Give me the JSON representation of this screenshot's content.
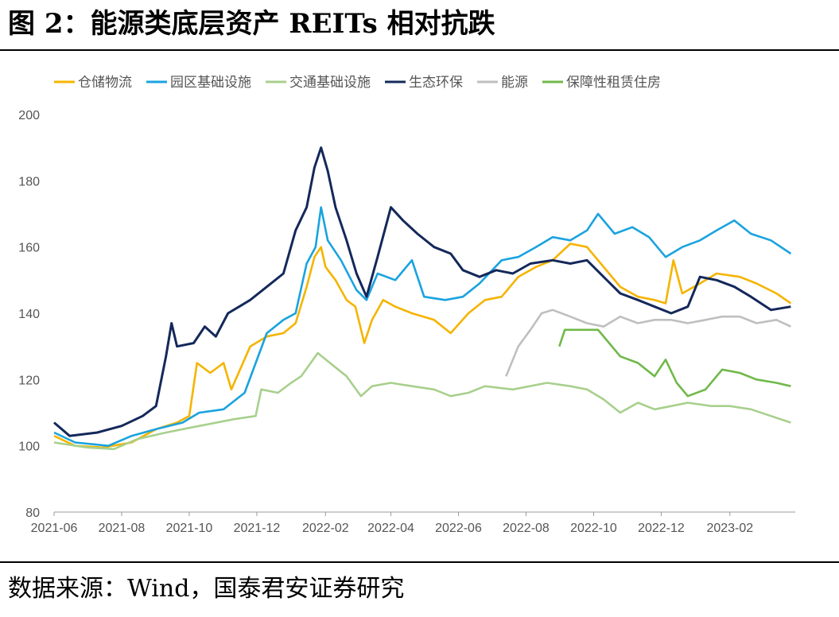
{
  "title": "图 2：能源类底层资产 REITs 相对抗跌",
  "source": "数据来源：Wind，国泰君安证券研究",
  "chart_data": {
    "type": "line",
    "legend_position": "top",
    "grid": false,
    "ylim": [
      80,
      200
    ],
    "yticks": [
      80,
      100,
      120,
      140,
      160,
      180,
      200
    ],
    "xlim": [
      "2021-06",
      "2023-04"
    ],
    "xticks": [
      "2021-06",
      "2021-08",
      "2021-10",
      "2021-12",
      "2022-02",
      "2022-04",
      "2022-06",
      "2022-08",
      "2022-10",
      "2022-12",
      "2023-02"
    ],
    "series": [
      {
        "name": "仓储物流",
        "color": "#f5b400",
        "points": [
          [
            "2021-06-01",
            103
          ],
          [
            "2021-06-20",
            100
          ],
          [
            "2021-07-15",
            99.5
          ],
          [
            "2021-08-10",
            101
          ],
          [
            "2021-09-01",
            105
          ],
          [
            "2021-09-20",
            107
          ],
          [
            "2021-10-01",
            109
          ],
          [
            "2021-10-08",
            125
          ],
          [
            "2021-10-20",
            122
          ],
          [
            "2021-11-01",
            125
          ],
          [
            "2021-11-08",
            117
          ],
          [
            "2021-11-25",
            130
          ],
          [
            "2021-12-10",
            133
          ],
          [
            "2021-12-25",
            134
          ],
          [
            "2022-01-05",
            137
          ],
          [
            "2022-01-15",
            148
          ],
          [
            "2022-01-22",
            157
          ],
          [
            "2022-01-28",
            160
          ],
          [
            "2022-02-01",
            154
          ],
          [
            "2022-02-10",
            150
          ],
          [
            "2022-02-20",
            144
          ],
          [
            "2022-02-28",
            142
          ],
          [
            "2022-03-08",
            131
          ],
          [
            "2022-03-15",
            138
          ],
          [
            "2022-03-25",
            144
          ],
          [
            "2022-04-05",
            142
          ],
          [
            "2022-04-20",
            140
          ],
          [
            "2022-05-10",
            138
          ],
          [
            "2022-05-25",
            134
          ],
          [
            "2022-06-10",
            140
          ],
          [
            "2022-06-25",
            144
          ],
          [
            "2022-07-10",
            145
          ],
          [
            "2022-07-25",
            151
          ],
          [
            "2022-08-10",
            154
          ],
          [
            "2022-08-25",
            156
          ],
          [
            "2022-09-10",
            161
          ],
          [
            "2022-09-25",
            160
          ],
          [
            "2022-10-10",
            154
          ],
          [
            "2022-10-25",
            148
          ],
          [
            "2022-11-10",
            145
          ],
          [
            "2022-11-25",
            144
          ],
          [
            "2022-12-05",
            143
          ],
          [
            "2022-12-12",
            156
          ],
          [
            "2022-12-20",
            146
          ],
          [
            "2023-01-05",
            149
          ],
          [
            "2023-01-20",
            152
          ],
          [
            "2023-02-10",
            151
          ],
          [
            "2023-02-25",
            149
          ],
          [
            "2023-03-15",
            146
          ],
          [
            "2023-03-28",
            143
          ]
        ]
      },
      {
        "name": "园区基础设施",
        "color": "#1aa3df",
        "points": [
          [
            "2021-06-01",
            104
          ],
          [
            "2021-06-20",
            101
          ],
          [
            "2021-07-20",
            100
          ],
          [
            "2021-08-10",
            103
          ],
          [
            "2021-09-01",
            105
          ],
          [
            "2021-09-25",
            107
          ],
          [
            "2021-10-10",
            110
          ],
          [
            "2021-11-01",
            111
          ],
          [
            "2021-11-20",
            116
          ],
          [
            "2021-12-10",
            134
          ],
          [
            "2021-12-25",
            138
          ],
          [
            "2022-01-05",
            140
          ],
          [
            "2022-01-15",
            155
          ],
          [
            "2022-01-23",
            160
          ],
          [
            "2022-01-28",
            172
          ],
          [
            "2022-02-03",
            162
          ],
          [
            "2022-02-15",
            156
          ],
          [
            "2022-03-01",
            147
          ],
          [
            "2022-03-10",
            144
          ],
          [
            "2022-03-20",
            152
          ],
          [
            "2022-04-05",
            150
          ],
          [
            "2022-04-20",
            156
          ],
          [
            "2022-05-01",
            145
          ],
          [
            "2022-05-20",
            144
          ],
          [
            "2022-06-05",
            145
          ],
          [
            "2022-06-20",
            149
          ],
          [
            "2022-07-10",
            156
          ],
          [
            "2022-07-25",
            157
          ],
          [
            "2022-08-10",
            160
          ],
          [
            "2022-08-25",
            163
          ],
          [
            "2022-09-10",
            162
          ],
          [
            "2022-09-25",
            165
          ],
          [
            "2022-10-05",
            170
          ],
          [
            "2022-10-20",
            164
          ],
          [
            "2022-11-05",
            166
          ],
          [
            "2022-11-20",
            163
          ],
          [
            "2022-12-05",
            157
          ],
          [
            "2022-12-20",
            160
          ],
          [
            "2023-01-05",
            162
          ],
          [
            "2023-01-20",
            165
          ],
          [
            "2023-02-05",
            168
          ],
          [
            "2023-02-20",
            164
          ],
          [
            "2023-03-10",
            162
          ],
          [
            "2023-03-28",
            158
          ]
        ]
      },
      {
        "name": "交通基础设施",
        "color": "#a8d08d",
        "points": [
          [
            "2021-06-01",
            101
          ],
          [
            "2021-07-01",
            99.5
          ],
          [
            "2021-07-25",
            99
          ],
          [
            "2021-08-15",
            102
          ],
          [
            "2021-09-10",
            104
          ],
          [
            "2021-10-10",
            106
          ],
          [
            "2021-11-10",
            108
          ],
          [
            "2021-11-30",
            109
          ],
          [
            "2021-12-05",
            117
          ],
          [
            "2021-12-20",
            116
          ],
          [
            "2022-01-01",
            119
          ],
          [
            "2022-01-10",
            121
          ],
          [
            "2022-01-25",
            128
          ],
          [
            "2022-02-05",
            125
          ],
          [
            "2022-02-20",
            121
          ],
          [
            "2022-03-05",
            115
          ],
          [
            "2022-03-15",
            118
          ],
          [
            "2022-04-01",
            119
          ],
          [
            "2022-04-20",
            118
          ],
          [
            "2022-05-10",
            117
          ],
          [
            "2022-05-25",
            115
          ],
          [
            "2022-06-10",
            116
          ],
          [
            "2022-06-25",
            118
          ],
          [
            "2022-07-20",
            117
          ],
          [
            "2022-08-20",
            119
          ],
          [
            "2022-09-10",
            118
          ],
          [
            "2022-09-25",
            117
          ],
          [
            "2022-10-10",
            114
          ],
          [
            "2022-10-25",
            110
          ],
          [
            "2022-11-10",
            113
          ],
          [
            "2022-11-25",
            111
          ],
          [
            "2022-12-10",
            112
          ],
          [
            "2022-12-25",
            113
          ],
          [
            "2023-01-15",
            112
          ],
          [
            "2023-02-01",
            112
          ],
          [
            "2023-02-20",
            111
          ],
          [
            "2023-03-10",
            109
          ],
          [
            "2023-03-28",
            107
          ]
        ]
      },
      {
        "name": "生态环保",
        "color": "#14285a",
        "points": [
          [
            "2021-06-01",
            107
          ],
          [
            "2021-06-15",
            103
          ],
          [
            "2021-07-10",
            104
          ],
          [
            "2021-08-01",
            106
          ],
          [
            "2021-08-20",
            109
          ],
          [
            "2021-09-01",
            112
          ],
          [
            "2021-09-10",
            127
          ],
          [
            "2021-09-15",
            137
          ],
          [
            "2021-09-20",
            130
          ],
          [
            "2021-10-05",
            131
          ],
          [
            "2021-10-15",
            136
          ],
          [
            "2021-10-25",
            133
          ],
          [
            "2021-11-05",
            140
          ],
          [
            "2021-11-15",
            142
          ],
          [
            "2021-11-25",
            144
          ],
          [
            "2021-12-10",
            148
          ],
          [
            "2021-12-25",
            152
          ],
          [
            "2022-01-05",
            165
          ],
          [
            "2022-01-15",
            172
          ],
          [
            "2022-01-22",
            184
          ],
          [
            "2022-01-28",
            190
          ],
          [
            "2022-02-03",
            183
          ],
          [
            "2022-02-10",
            172
          ],
          [
            "2022-02-20",
            162
          ],
          [
            "2022-03-01",
            152
          ],
          [
            "2022-03-10",
            145
          ],
          [
            "2022-03-20",
            157
          ],
          [
            "2022-04-01",
            172
          ],
          [
            "2022-04-12",
            168
          ],
          [
            "2022-04-25",
            164
          ],
          [
            "2022-05-10",
            160
          ],
          [
            "2022-05-25",
            158
          ],
          [
            "2022-06-05",
            153
          ],
          [
            "2022-06-20",
            151
          ],
          [
            "2022-07-05",
            153
          ],
          [
            "2022-07-20",
            152
          ],
          [
            "2022-08-05",
            155
          ],
          [
            "2022-08-25",
            156
          ],
          [
            "2022-09-10",
            155
          ],
          [
            "2022-09-25",
            156
          ],
          [
            "2022-10-10",
            151
          ],
          [
            "2022-10-25",
            146
          ],
          [
            "2022-11-10",
            144
          ],
          [
            "2022-11-25",
            142
          ],
          [
            "2022-12-10",
            140
          ],
          [
            "2022-12-25",
            142
          ],
          [
            "2023-01-05",
            151
          ],
          [
            "2023-01-20",
            150
          ],
          [
            "2023-02-05",
            148
          ],
          [
            "2023-02-20",
            145
          ],
          [
            "2023-03-10",
            141
          ],
          [
            "2023-03-28",
            142
          ]
        ]
      },
      {
        "name": "能源",
        "color": "#bfbfbf",
        "points": [
          [
            "2022-07-14",
            121
          ],
          [
            "2022-07-25",
            130
          ],
          [
            "2022-08-05",
            135
          ],
          [
            "2022-08-15",
            140
          ],
          [
            "2022-08-25",
            141
          ],
          [
            "2022-09-10",
            139
          ],
          [
            "2022-09-25",
            137
          ],
          [
            "2022-10-10",
            136
          ],
          [
            "2022-10-25",
            139
          ],
          [
            "2022-11-10",
            137
          ],
          [
            "2022-11-25",
            138
          ],
          [
            "2022-12-10",
            138
          ],
          [
            "2022-12-25",
            137
          ],
          [
            "2023-01-10",
            138
          ],
          [
            "2023-01-25",
            139
          ],
          [
            "2023-02-10",
            139
          ],
          [
            "2023-02-25",
            137
          ],
          [
            "2023-03-15",
            138
          ],
          [
            "2023-03-28",
            136
          ]
        ]
      },
      {
        "name": "保障性租赁住房",
        "color": "#70b84a",
        "points": [
          [
            "2022-08-31",
            130
          ],
          [
            "2022-09-05",
            135
          ],
          [
            "2022-09-20",
            135
          ],
          [
            "2022-10-05",
            135
          ],
          [
            "2022-10-15",
            131
          ],
          [
            "2022-10-25",
            127
          ],
          [
            "2022-11-10",
            125
          ],
          [
            "2022-11-25",
            121
          ],
          [
            "2022-12-05",
            126
          ],
          [
            "2022-12-15",
            119
          ],
          [
            "2022-12-25",
            115
          ],
          [
            "2023-01-10",
            117
          ],
          [
            "2023-01-25",
            123
          ],
          [
            "2023-02-10",
            122
          ],
          [
            "2023-02-25",
            120
          ],
          [
            "2023-03-15",
            119
          ],
          [
            "2023-03-28",
            118
          ]
        ]
      }
    ]
  }
}
